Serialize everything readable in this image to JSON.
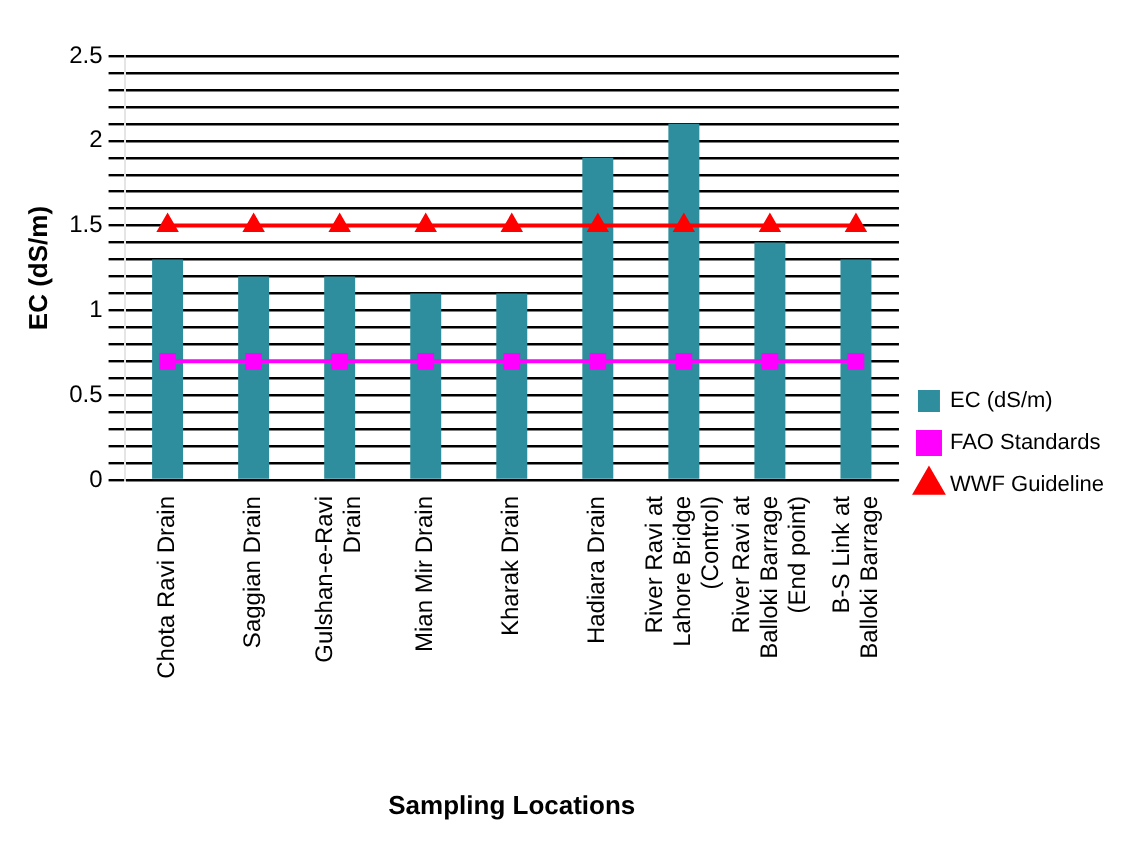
{
  "chart_data": {
    "type": "bar",
    "xlabel": "Sampling Locations",
    "ylabel": "EC (dS/m)",
    "categories": [
      "Chota Ravi Drain",
      "Saggian Drain",
      "Gulshan-e-Ravi Drain",
      "Mian Mir Drain",
      "Kharak Drain",
      "Hadiara Drain",
      "River Ravi at Lahore Bridge (Control)",
      "River Ravi at Balloki Barrage (End point)",
      "B-S Link at Balloki Barrage"
    ],
    "series": [
      {
        "name": "EC (dS/m)",
        "color": "#2f8e9e",
        "values": [
          1.3,
          1.2,
          1.2,
          1.1,
          1.1,
          1.9,
          2.1,
          1.4,
          1.3
        ]
      },
      {
        "name": "FAO Standards",
        "type": "line",
        "color": "#ff00ff",
        "marker": "square",
        "values": [
          0.7,
          0.7,
          0.7,
          0.7,
          0.7,
          0.7,
          0.7,
          0.7,
          0.7
        ]
      },
      {
        "name": "WWF Guideline",
        "type": "line",
        "color": "#ff0000",
        "marker": "triangle",
        "values": [
          1.5,
          1.5,
          1.5,
          1.5,
          1.5,
          1.5,
          1.5,
          1.5,
          1.5
        ]
      }
    ],
    "ylim": [
      0,
      2.5
    ],
    "yticks": [
      0,
      {
        "value": 0.1,
        "label": null
      },
      {
        "value": 0.2,
        "label": null
      },
      {
        "value": 0.3,
        "label": null
      },
      {
        "value": 0.4,
        "label": null
      },
      0.5,
      {
        "value": 0.6,
        "label": null
      },
      {
        "value": 0.7,
        "label": null
      },
      {
        "value": 0.8,
        "label": null
      },
      {
        "value": 0.9,
        "label": null
      },
      1,
      {
        "value": 1.1,
        "label": null
      },
      {
        "value": 1.2,
        "label": null
      },
      {
        "value": 1.3,
        "label": null
      },
      {
        "value": 1.4,
        "label": null
      },
      1.5,
      {
        "value": 1.6,
        "label": null
      },
      {
        "value": 1.7,
        "label": null
      },
      {
        "value": 1.8,
        "label": null
      },
      {
        "value": 1.9,
        "label": null
      },
      2,
      {
        "value": 2.1,
        "label": null
      },
      {
        "value": 2.2,
        "label": null
      },
      {
        "value": 2.3,
        "label": null
      },
      {
        "value": 2.4,
        "label": null
      },
      2.5
    ],
    "grid": "y",
    "legend": "right"
  }
}
